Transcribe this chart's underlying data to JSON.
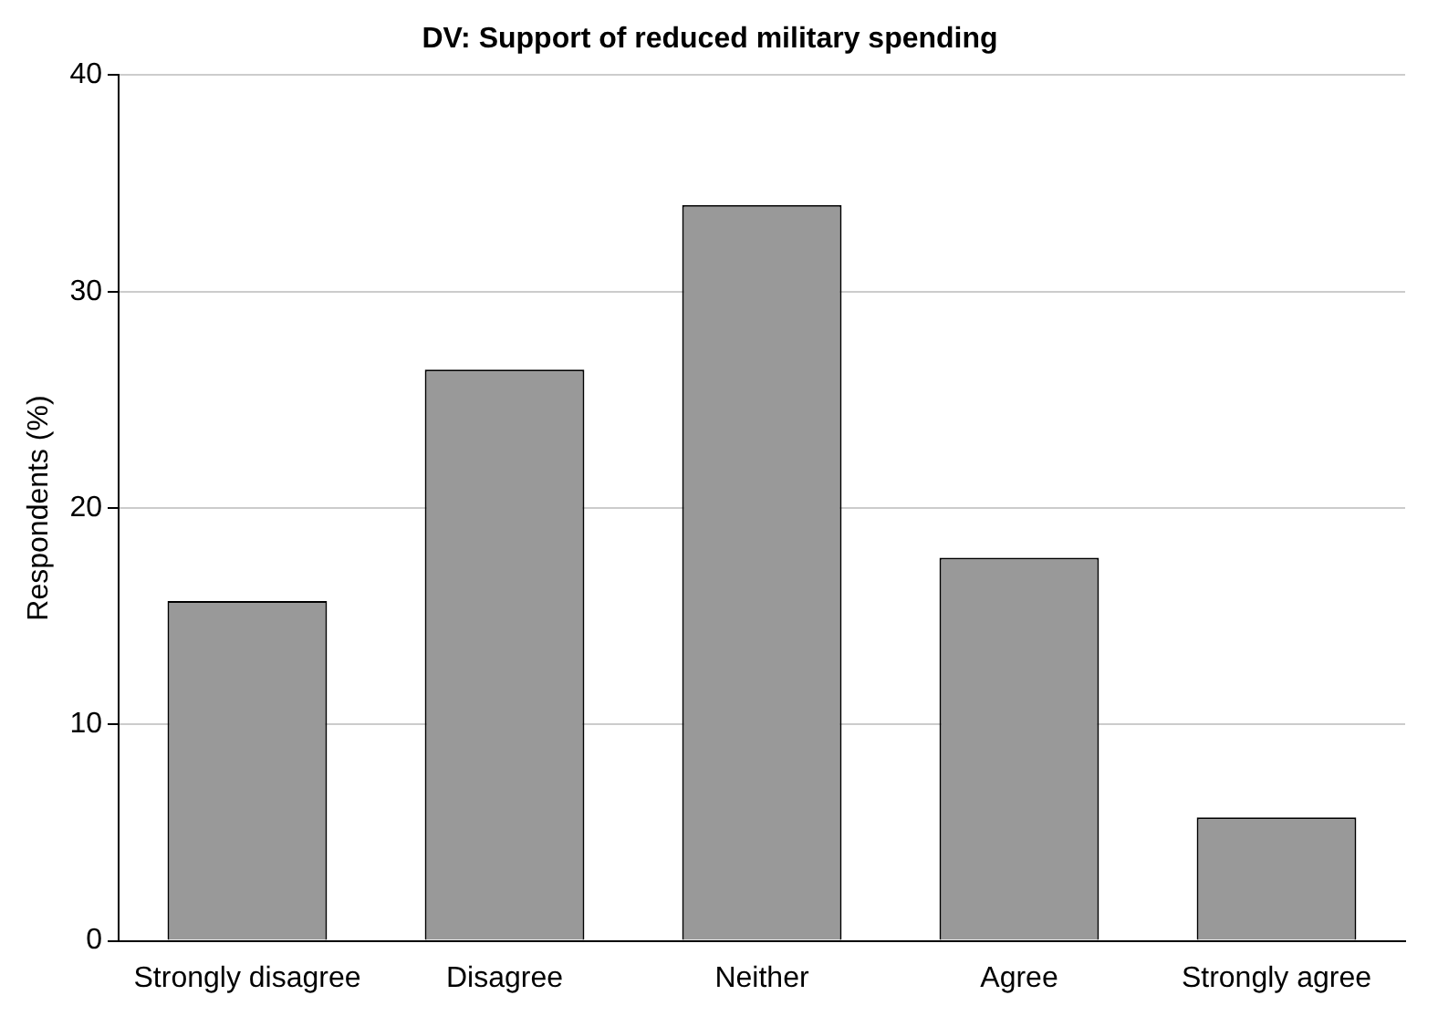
{
  "chart_data": {
    "type": "bar",
    "title": "DV: Support of reduced military spending",
    "ylabel": "Respondents (%)",
    "categories": [
      "Strongly disagree",
      "Disagree",
      "Neither",
      "Agree",
      "Strongly agree"
    ],
    "values": [
      15.7,
      26.4,
      34.0,
      17.7,
      5.7
    ],
    "color": "#999999",
    "ylim": [
      0,
      40
    ],
    "yticks": [
      0,
      10,
      20,
      30,
      40
    ],
    "grid": "y"
  }
}
